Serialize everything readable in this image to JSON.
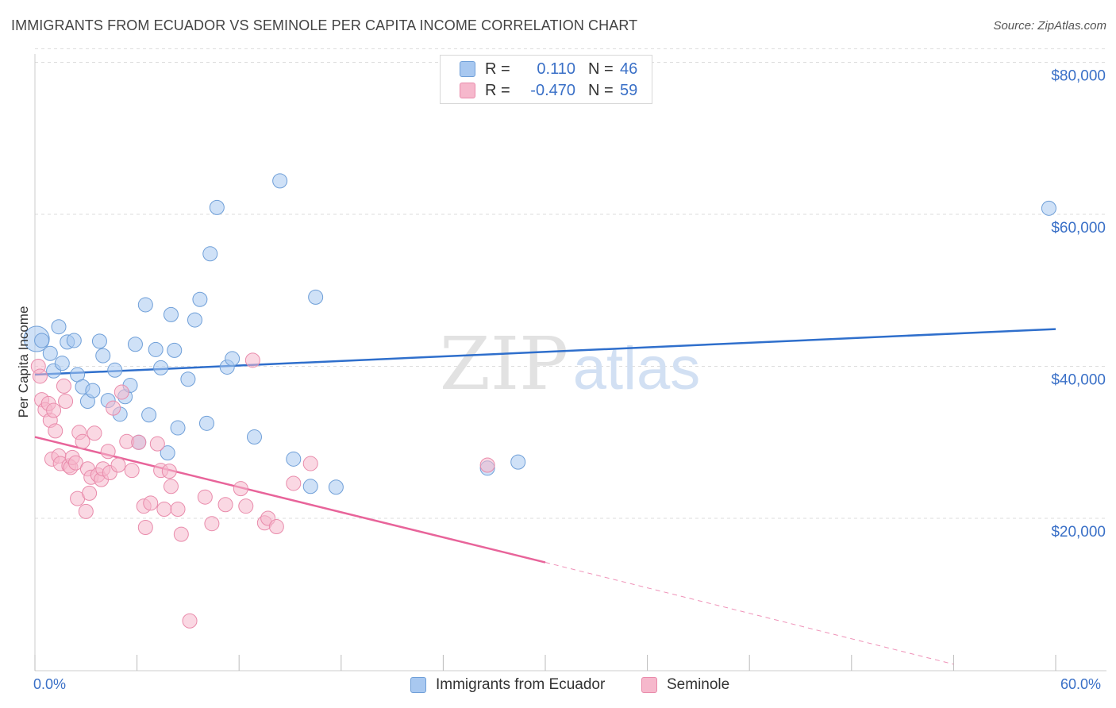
{
  "header": {
    "title": "IMMIGRANTS FROM ECUADOR VS SEMINOLE PER CAPITA INCOME CORRELATION CHART",
    "source": "Source: ZipAtlas.com"
  },
  "legend": {
    "rows": [
      {
        "r_label": "R =",
        "r_value": "0.110",
        "n_label": "N =",
        "n_value": "46"
      },
      {
        "r_label": "R =",
        "r_value": "-0.470",
        "n_label": "N =",
        "n_value": "59"
      }
    ]
  },
  "watermark": {
    "zip": "ZIP",
    "atlas": "atlas"
  },
  "colors": {
    "blue_fill": "#a8c8f0",
    "blue_stroke": "#6f9fd8",
    "blue_line": "#2f6fcc",
    "pink_fill": "#f6b8cc",
    "pink_stroke": "#e98bab",
    "pink_line": "#e8649a",
    "axis_text": "#3a70c7",
    "grid": "#dddddd"
  },
  "chart_data": {
    "type": "scatter",
    "title": "IMMIGRANTS FROM ECUADOR VS SEMINOLE PER CAPITA INCOME CORRELATION CHART",
    "xlabel": "",
    "ylabel": "Per Capita Income",
    "xlim": [
      0,
      60
    ],
    "ylim": [
      0,
      80000
    ],
    "x_tick_labels": [
      "0.0%",
      "60.0%"
    ],
    "y_ticks": [
      20000,
      40000,
      60000,
      80000
    ],
    "y_tick_labels": [
      "$20,000",
      "$40,000",
      "$60,000",
      "$80,000"
    ],
    "grid": true,
    "series": [
      {
        "name": "Immigrants from Ecuador",
        "color": "blue",
        "r": 0.11,
        "n": 46,
        "trend": {
          "x0": 0,
          "y0": 38900,
          "x1": 60,
          "y1": 44900,
          "dashed_after": null
        },
        "points": [
          [
            0.1,
            43600
          ],
          [
            0.4,
            43400
          ],
          [
            0.9,
            41700
          ],
          [
            1.1,
            39400
          ],
          [
            1.4,
            45200
          ],
          [
            1.6,
            40400
          ],
          [
            1.9,
            43200
          ],
          [
            2.3,
            43400
          ],
          [
            2.5,
            38900
          ],
          [
            2.8,
            37300
          ],
          [
            3.1,
            35400
          ],
          [
            3.4,
            36800
          ],
          [
            3.8,
            43300
          ],
          [
            4.0,
            41400
          ],
          [
            4.3,
            35500
          ],
          [
            4.7,
            39500
          ],
          [
            5.0,
            33700
          ],
          [
            5.3,
            36000
          ],
          [
            5.6,
            37500
          ],
          [
            5.9,
            42900
          ],
          [
            6.1,
            30000
          ],
          [
            6.5,
            48100
          ],
          [
            6.7,
            33600
          ],
          [
            7.1,
            42200
          ],
          [
            7.4,
            39800
          ],
          [
            7.8,
            28600
          ],
          [
            8.0,
            46800
          ],
          [
            8.2,
            42100
          ],
          [
            8.4,
            31900
          ],
          [
            9.0,
            38300
          ],
          [
            9.4,
            46100
          ],
          [
            9.7,
            48800
          ],
          [
            10.1,
            32500
          ],
          [
            10.3,
            54800
          ],
          [
            10.7,
            60900
          ],
          [
            11.3,
            39900
          ],
          [
            11.6,
            41000
          ],
          [
            12.9,
            30700
          ],
          [
            14.4,
            64400
          ],
          [
            15.2,
            27800
          ],
          [
            16.2,
            24200
          ],
          [
            16.5,
            49100
          ],
          [
            17.7,
            24100
          ],
          [
            26.6,
            26600
          ],
          [
            28.4,
            27400
          ],
          [
            59.6,
            60800
          ]
        ]
      },
      {
        "name": "Seminole",
        "color": "pink",
        "r": -0.47,
        "n": 59,
        "trend": {
          "x0": 0,
          "y0": 30700,
          "x1": 30,
          "y1": 14200,
          "dashed_after": true,
          "x2": 54,
          "y2": 800
        },
        "points": [
          [
            0.2,
            40000
          ],
          [
            0.3,
            38700
          ],
          [
            0.4,
            35600
          ],
          [
            0.6,
            34300
          ],
          [
            0.8,
            35100
          ],
          [
            0.9,
            32900
          ],
          [
            1.0,
            27800
          ],
          [
            1.1,
            34200
          ],
          [
            1.2,
            31500
          ],
          [
            1.4,
            28200
          ],
          [
            1.5,
            27200
          ],
          [
            1.7,
            37400
          ],
          [
            1.8,
            35400
          ],
          [
            2.0,
            26900
          ],
          [
            2.1,
            26700
          ],
          [
            2.2,
            28000
          ],
          [
            2.4,
            27300
          ],
          [
            2.5,
            22600
          ],
          [
            2.6,
            31300
          ],
          [
            2.8,
            30100
          ],
          [
            3.0,
            20900
          ],
          [
            3.1,
            26500
          ],
          [
            3.2,
            23300
          ],
          [
            3.3,
            25400
          ],
          [
            3.5,
            31200
          ],
          [
            3.7,
            25700
          ],
          [
            3.9,
            25100
          ],
          [
            4.0,
            26500
          ],
          [
            4.3,
            28800
          ],
          [
            4.4,
            26000
          ],
          [
            4.6,
            34500
          ],
          [
            4.9,
            27000
          ],
          [
            5.1,
            36600
          ],
          [
            5.4,
            30100
          ],
          [
            5.7,
            26300
          ],
          [
            6.1,
            30000
          ],
          [
            6.4,
            21600
          ],
          [
            6.5,
            18800
          ],
          [
            6.8,
            22000
          ],
          [
            7.2,
            29800
          ],
          [
            7.4,
            26300
          ],
          [
            7.6,
            21200
          ],
          [
            7.9,
            26200
          ],
          [
            8.0,
            24200
          ],
          [
            8.4,
            21200
          ],
          [
            8.6,
            17900
          ],
          [
            9.1,
            6500
          ],
          [
            10.0,
            22800
          ],
          [
            10.4,
            19300
          ],
          [
            11.2,
            21800
          ],
          [
            12.1,
            23900
          ],
          [
            12.4,
            21600
          ],
          [
            12.8,
            40800
          ],
          [
            13.5,
            19400
          ],
          [
            13.7,
            20000
          ],
          [
            14.2,
            18900
          ],
          [
            15.2,
            24600
          ],
          [
            16.2,
            27200
          ],
          [
            26.6,
            27000
          ]
        ]
      }
    ]
  },
  "bottom_legend": {
    "items": [
      {
        "label": "Immigrants from Ecuador"
      },
      {
        "label": "Seminole"
      }
    ]
  }
}
